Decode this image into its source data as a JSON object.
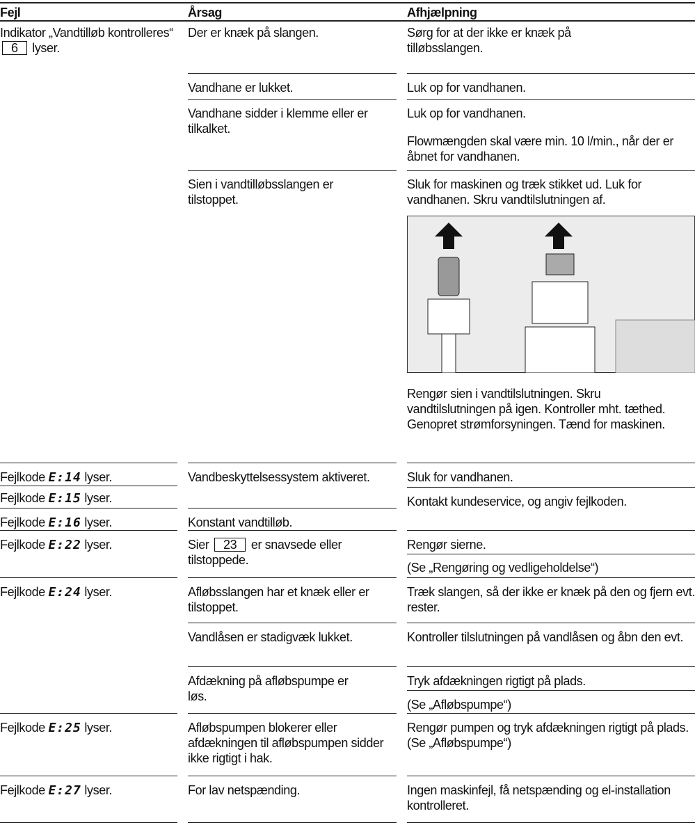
{
  "header": {
    "fault": "Fejl",
    "cause": "Årsag",
    "remedy": "Afhjælpning"
  },
  "faults": [
    {
      "text": "Indikator „Vandtilløb kontrolleres“",
      "box": "6",
      "suffix": "lyser."
    },
    {
      "prefix": "Fejlkode",
      "code": "E:14",
      "suffix": "lyser."
    },
    {
      "prefix": "Fejlkode",
      "code": "E:15",
      "suffix": "lyser."
    },
    {
      "prefix": "Fejlkode",
      "code": "E:16",
      "suffix": "lyser."
    },
    {
      "prefix": "Fejlkode",
      "code": "E:22",
      "suffix": "lyser."
    },
    {
      "prefix": "Fejlkode",
      "code": "E:24",
      "suffix": "lyser."
    },
    {
      "prefix": "Fejlkode",
      "code": "E:25",
      "suffix": "lyser."
    },
    {
      "prefix": "Fejlkode",
      "code": "E:27",
      "suffix": "lyser."
    }
  ],
  "causes": [
    "Der er knæk på slangen.",
    "Vandhane er lukket.",
    "Vandhane sidder i klemme eller er tilkalket.",
    "Sien i vandtilløbsslangen er tilstoppet.",
    "Vandbeskyttelsessystem aktiveret.",
    "Konstant vandtilløb.",
    {
      "text": "Sier",
      "box": "23",
      "suffix": "er snavsede eller tilstoppede."
    },
    "Afløbsslangen har et knæk eller er tilstoppet.",
    "Vandlåsen er stadigvæk lukket.",
    "Afdækning på afløbspumpe er løs.",
    "Afløbspumpen blokerer eller afdækningen til afløbspumpen sidder ikke rigtigt i hak.",
    "For lav netspænding."
  ],
  "remedies": [
    "Sørg for at der ikke er knæk på tilløbsslangen.",
    "Luk op for vandhanen.",
    "Luk op for vandhanen.",
    "Flowmængden skal være min. 10 l/min., når der er åbnet for vandhanen.",
    "Sluk for maskinen og træk stikket ud. Luk for vandhanen. Skru vandtilslutningen af.",
    "Rengør sien i vandtilslutningen. Skru vandtilslutningen på igen. Kontroller mht. tæthed. Genopret strømforsyningen. Tænd for maskinen.",
    "Sluk for vandhanen.",
    "Kontakt kundeservice, og angiv fejlkoden.",
    "Rengør sierne.",
    "(Se „Rengøring og vedligeholdelse“)",
    "Træk slangen, så der ikke er knæk på den og fjern evt. rester.",
    "Kontroller tilslutningen på vandlåsen og åbn den evt.",
    "Tryk afdækningen rigtigt på plads.",
    "(Se „Afløbspumpe“)",
    "Rengør pumpen og tryk afdækningen rigtigt på plads. (Se „Afløbspumpe“)",
    "Ingen maskinfejl, få netspænding og el-installation kontrolleret."
  ]
}
